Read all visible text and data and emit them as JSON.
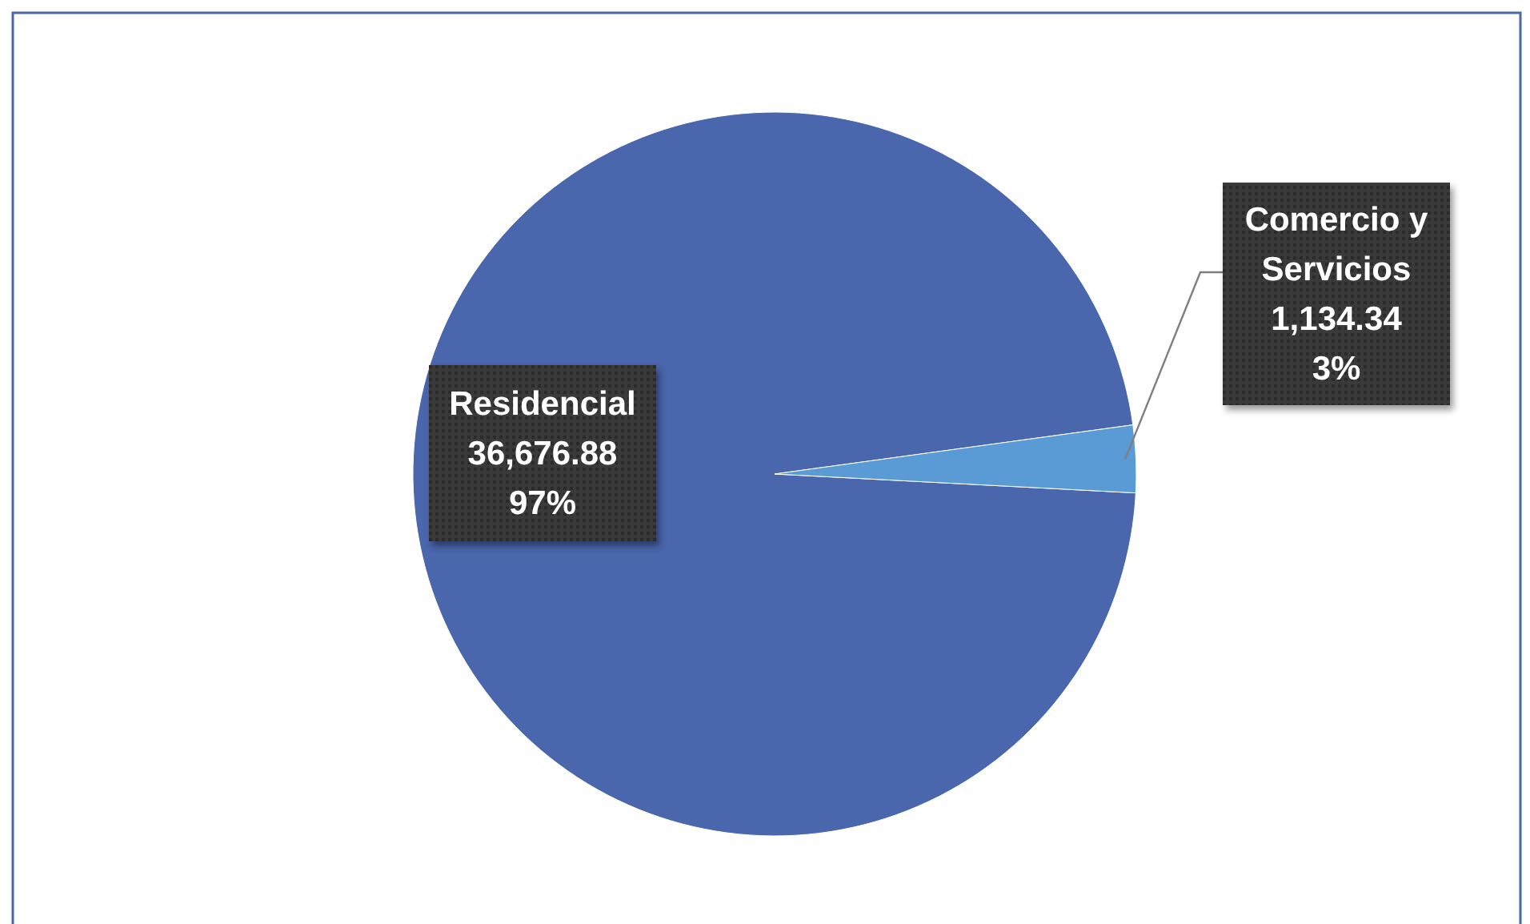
{
  "chart_data": {
    "type": "pie",
    "categories": [
      "Residencial",
      "Comercio y Servicios"
    ],
    "values": [
      36676.88,
      1134.34
    ],
    "colors": [
      "#4a66ac",
      "#5b9bd5"
    ],
    "value_labels": [
      "36,676.88\n97%",
      "1,134.34\n3%"
    ]
  }
}
